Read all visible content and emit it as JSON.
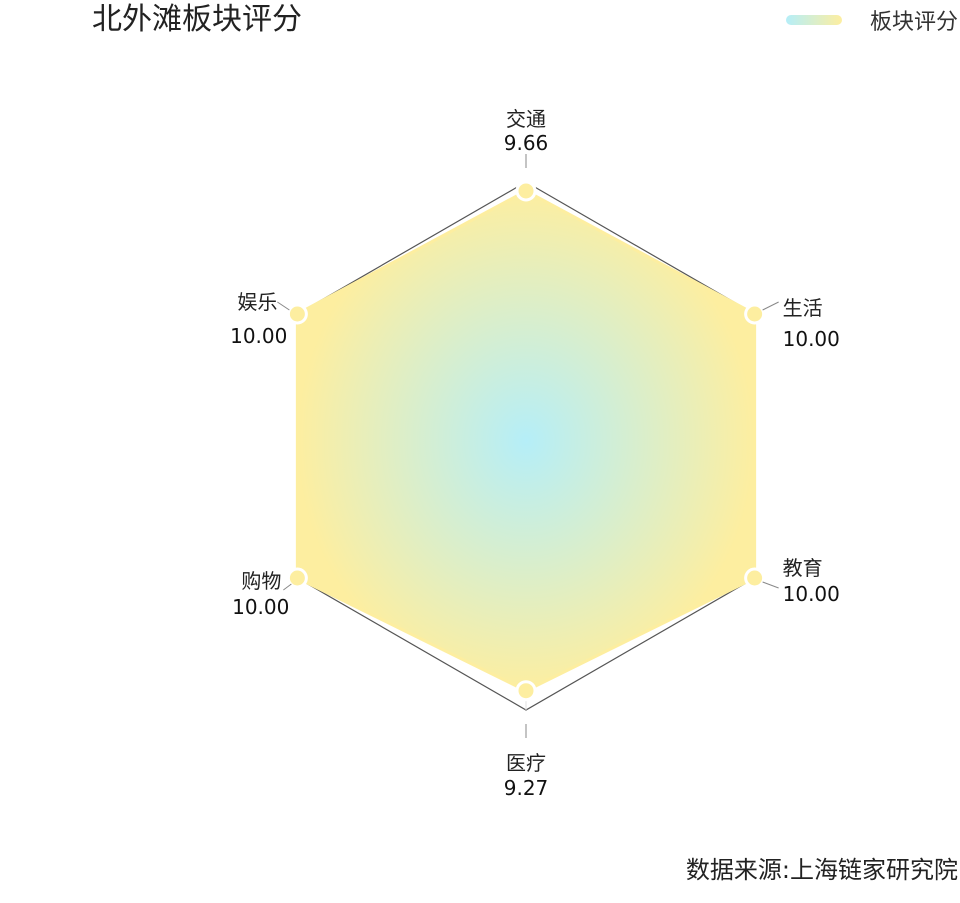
{
  "title": "北外滩板块评分",
  "legend": {
    "label": "板块评分"
  },
  "source": "数据来源:上海链家研究院",
  "chart_data": {
    "type": "radar",
    "title": "北外滩板块评分",
    "series": [
      {
        "name": "板块评分",
        "values": [
          9.66,
          10.0,
          10.0,
          9.27,
          10.0,
          10.0
        ]
      }
    ],
    "indicators": [
      {
        "name": "交通",
        "label": "9.66",
        "max": 10
      },
      {
        "name": "生活",
        "label": "10.00",
        "max": 10
      },
      {
        "name": "教育",
        "label": "10.00",
        "max": 10
      },
      {
        "name": "医疗",
        "label": "9.27",
        "max": 10
      },
      {
        "name": "购物",
        "label": "10.00",
        "max": 10
      },
      {
        "name": "娱乐",
        "label": "10.00",
        "max": 10
      }
    ],
    "split_number": 5,
    "legend_position": "top-right",
    "colors": {
      "area_center": "#b5eef8",
      "area_edge": "#fdeea0",
      "point": "#fdeea0",
      "outline": "#555555",
      "grid": "#e0e0e0"
    }
  }
}
